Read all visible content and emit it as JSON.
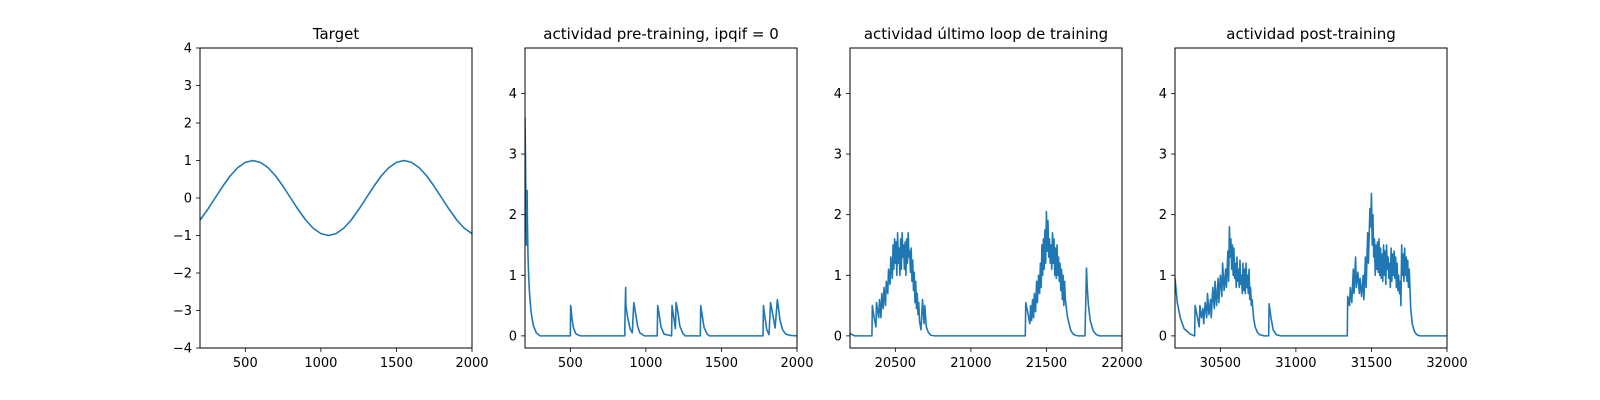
{
  "chart_data": [
    {
      "type": "line",
      "title": "Target",
      "xlabel": "",
      "ylabel": "",
      "xlim": [
        200,
        2000
      ],
      "ylim": [
        -4,
        4
      ],
      "xticks": [
        500,
        1000,
        1500,
        2000
      ],
      "yticks": [
        -4,
        -3,
        -2,
        -1,
        0,
        1,
        2,
        3,
        4
      ],
      "color": "#1f77b4",
      "grid": false,
      "series": [
        {
          "x": [
            200,
            250,
            300,
            350,
            400,
            450,
            500,
            550,
            600,
            650,
            700,
            750,
            800,
            850,
            900,
            950,
            1000,
            1050,
            1100,
            1150,
            1200,
            1250,
            1300,
            1350,
            1400,
            1450,
            1500,
            1550,
            1600,
            1650,
            1700,
            1750,
            1800,
            1850,
            1900,
            1950,
            2000
          ],
          "values": [
            -0.59,
            -0.31,
            0.0,
            0.31,
            0.59,
            0.81,
            0.95,
            1.0,
            0.95,
            0.81,
            0.59,
            0.31,
            0.0,
            -0.31,
            -0.59,
            -0.81,
            -0.95,
            -1.0,
            -0.95,
            -0.81,
            -0.59,
            -0.31,
            0.0,
            0.31,
            0.59,
            0.81,
            0.95,
            1.0,
            0.95,
            0.81,
            0.59,
            0.31,
            0.0,
            -0.31,
            -0.59,
            -0.81,
            -0.95
          ]
        }
      ]
    },
    {
      "type": "line",
      "title": "actividad pre-training, ipqif = 0",
      "xlabel": "",
      "ylabel": "",
      "xlim": [
        200,
        2000
      ],
      "ylim": [
        -0.2,
        4.75
      ],
      "xticks": [
        500,
        1000,
        1500,
        2000
      ],
      "yticks": [
        0,
        1,
        2,
        3,
        4
      ],
      "color": "#1f77b4",
      "grid": false,
      "series": [
        {
          "x": [
            200,
            203,
            206,
            210,
            212,
            214,
            216,
            220,
            225,
            230,
            240,
            255,
            275,
            300,
            500,
            502,
            505,
            510,
            520,
            535,
            555,
            570,
            860,
            862,
            866,
            868,
            872,
            880,
            895,
            910,
            920,
            930,
            945,
            960,
            990,
            1075,
            1078,
            1085,
            1100,
            1120,
            1170,
            1173,
            1180,
            1195,
            1200,
            1210,
            1225,
            1245,
            1260,
            1360,
            1363,
            1370,
            1385,
            1405,
            1420,
            1775,
            1778,
            1785,
            1800,
            1815,
            1825,
            1840,
            1855,
            1870,
            1878,
            1888,
            1905,
            1925,
            1950,
            2000
          ],
          "values": [
            3.6,
            3.0,
            2.2,
            1.5,
            2.3,
            2.4,
            1.9,
            1.3,
            0.95,
            0.7,
            0.4,
            0.17,
            0.05,
            0.0,
            0.0,
            0.5,
            0.45,
            0.3,
            0.14,
            0.04,
            0.01,
            0.0,
            0.0,
            0.35,
            0.8,
            0.5,
            0.42,
            0.3,
            0.12,
            0.05,
            0.55,
            0.4,
            0.16,
            0.05,
            0.0,
            0.0,
            0.5,
            0.4,
            0.15,
            0.03,
            0.0,
            0.5,
            0.38,
            0.12,
            0.55,
            0.42,
            0.16,
            0.04,
            0.0,
            0.0,
            0.5,
            0.38,
            0.14,
            0.03,
            0.0,
            0.0,
            0.5,
            0.36,
            0.1,
            0.02,
            0.55,
            0.35,
            0.13,
            0.6,
            0.45,
            0.25,
            0.1,
            0.03,
            0.01,
            0.0
          ]
        }
      ]
    },
    {
      "type": "line",
      "title": "actividad último loop de training",
      "xlabel": "",
      "ylabel": "",
      "xlim": [
        20200,
        22000
      ],
      "ylim": [
        -0.2,
        4.75
      ],
      "xticks": [
        20500,
        21000,
        21500,
        22000
      ],
      "yticks": [
        0,
        1,
        2,
        3,
        4
      ],
      "color": "#1f77b4",
      "grid": false,
      "series": [
        {
          "x": [
            20200,
            20215,
            20230,
            20345,
            20348,
            20360,
            20372,
            20375,
            20390,
            20395,
            20405,
            20410,
            20420,
            20425,
            20435,
            20440,
            20450,
            20455,
            20465,
            20470,
            20480,
            20485,
            20490,
            20495,
            20500,
            20505,
            20510,
            20515,
            20520,
            20525,
            20530,
            20535,
            20540,
            20545,
            20550,
            20555,
            20560,
            20565,
            20570,
            20575,
            20580,
            20585,
            20590,
            20595,
            20600,
            20605,
            20610,
            20615,
            20620,
            20625,
            20630,
            20635,
            20640,
            20645,
            20650,
            20655,
            20660,
            20670,
            20680,
            20690,
            20695,
            20705,
            20720,
            20735,
            20760,
            21360,
            21363,
            21375,
            21390,
            21395,
            21402,
            21408,
            21415,
            21420,
            21428,
            21435,
            21440,
            21448,
            21455,
            21460,
            21465,
            21470,
            21475,
            21480,
            21485,
            21490,
            21495,
            21500,
            21505,
            21510,
            21515,
            21520,
            21525,
            21530,
            21535,
            21540,
            21545,
            21550,
            21555,
            21560,
            21565,
            21570,
            21575,
            21580,
            21585,
            21590,
            21595,
            21600,
            21605,
            21610,
            21615,
            21620,
            21625,
            21630,
            21640,
            21650,
            21660,
            21668,
            21678,
            21690,
            21710,
            21730,
            21755,
            21765,
            21770,
            21778,
            21790,
            21810,
            21830,
            21850,
            22000
          ],
          "values": [
            0.04,
            0.02,
            0.0,
            0.0,
            0.5,
            0.3,
            0.15,
            0.55,
            0.3,
            0.6,
            0.3,
            0.7,
            0.45,
            0.8,
            0.5,
            0.9,
            0.7,
            1.1,
            0.85,
            1.3,
            0.95,
            1.5,
            1.1,
            1.6,
            1.2,
            1.55,
            1.0,
            1.7,
            1.2,
            1.45,
            1.0,
            1.6,
            1.1,
            1.7,
            1.3,
            1.5,
            1.1,
            1.55,
            1.0,
            1.6,
            1.2,
            1.7,
            1.3,
            1.4,
            1.05,
            1.45,
            0.9,
            1.25,
            0.75,
            1.05,
            0.55,
            0.9,
            0.45,
            0.7,
            0.35,
            0.55,
            0.25,
            0.1,
            0.6,
            0.2,
            0.5,
            0.15,
            0.05,
            0.01,
            0.0,
            0.0,
            0.55,
            0.4,
            0.2,
            0.5,
            0.25,
            0.6,
            0.3,
            0.7,
            0.4,
            0.9,
            0.55,
            1.0,
            0.7,
            1.2,
            0.8,
            1.5,
            1.0,
            1.6,
            1.1,
            1.75,
            1.2,
            2.05,
            1.4,
            1.9,
            1.3,
            1.6,
            1.2,
            1.5,
            1.1,
            1.7,
            1.2,
            1.6,
            1.0,
            1.45,
            0.95,
            1.5,
            1.0,
            1.3,
            0.9,
            1.2,
            0.75,
            1.1,
            0.6,
            1.0,
            0.5,
            0.9,
            0.6,
            0.5,
            0.3,
            0.2,
            0.1,
            0.06,
            0.03,
            0.01,
            0.0,
            0.0,
            0.0,
            1.12,
            0.8,
            0.5,
            0.25,
            0.08,
            0.02,
            0.0,
            0.0
          ]
        }
      ]
    },
    {
      "type": "line",
      "title": "actividad post-training",
      "xlabel": "",
      "ylabel": "",
      "xlim": [
        30200,
        32000
      ],
      "ylim": [
        -0.2,
        4.75
      ],
      "xticks": [
        30500,
        31000,
        31500,
        32000
      ],
      "yticks": [
        0,
        1,
        2,
        3,
        4
      ],
      "color": "#1f77b4",
      "grid": false,
      "series": [
        {
          "x": [
            30200,
            30215,
            30235,
            30260,
            30300,
            30330,
            30333,
            30345,
            30360,
            30365,
            30375,
            30385,
            30390,
            30400,
            30410,
            30415,
            30425,
            30435,
            30440,
            30450,
            30460,
            30465,
            30475,
            30485,
            30490,
            30500,
            30510,
            30515,
            30525,
            30535,
            30540,
            30550,
            30555,
            30560,
            30565,
            30570,
            30575,
            30580,
            30585,
            30590,
            30595,
            30600,
            30605,
            30610,
            30615,
            30620,
            30625,
            30630,
            30635,
            30640,
            30645,
            30650,
            30655,
            30660,
            30665,
            30670,
            30675,
            30680,
            30685,
            30690,
            30695,
            30700,
            30705,
            30710,
            30720,
            30730,
            30745,
            30760,
            30775,
            30790,
            30820,
            30823,
            30835,
            30850,
            30870,
            30900,
            31340,
            31343,
            31355,
            31360,
            31370,
            31380,
            31385,
            31395,
            31400,
            31410,
            31420,
            31425,
            31435,
            31445,
            31450,
            31460,
            31465,
            31475,
            31480,
            31490,
            31495,
            31500,
            31505,
            31510,
            31515,
            31520,
            31525,
            31530,
            31535,
            31540,
            31545,
            31550,
            31555,
            31560,
            31565,
            31570,
            31575,
            31580,
            31585,
            31590,
            31595,
            31600,
            31605,
            31610,
            31615,
            31620,
            31625,
            31630,
            31635,
            31640,
            31645,
            31650,
            31655,
            31660,
            31665,
            31670,
            31675,
            31680,
            31685,
            31690,
            31695,
            31700,
            31705,
            31710,
            31715,
            31720,
            31725,
            31730,
            31735,
            31740,
            31745,
            31750,
            31760,
            31770,
            31785,
            31800,
            31820,
            32000
          ],
          "values": [
            0.95,
            0.55,
            0.3,
            0.12,
            0.03,
            0.0,
            0.5,
            0.35,
            0.15,
            0.5,
            0.3,
            0.45,
            0.2,
            0.55,
            0.3,
            0.7,
            0.35,
            0.6,
            0.3,
            0.8,
            0.45,
            0.9,
            0.5,
            0.95,
            0.55,
            1.0,
            0.65,
            1.2,
            0.75,
            1.1,
            0.8,
            1.4,
            0.9,
            1.8,
            1.3,
            1.6,
            1.1,
            1.5,
            1.0,
            1.45,
            0.95,
            1.2,
            0.8,
            1.3,
            0.9,
            1.1,
            0.8,
            1.25,
            0.85,
            1.0,
            0.7,
            1.2,
            0.75,
            1.1,
            0.7,
            1.2,
            0.8,
            1.0,
            0.7,
            1.1,
            0.6,
            0.8,
            0.5,
            0.6,
            0.3,
            0.15,
            0.06,
            0.02,
            0.01,
            0.0,
            0.0,
            0.53,
            0.3,
            0.1,
            0.02,
            0.0,
            0.0,
            0.65,
            0.5,
            0.8,
            0.55,
            1.1,
            0.7,
            1.3,
            0.8,
            1.05,
            0.7,
            0.95,
            0.65,
            1.0,
            0.6,
            1.3,
            0.8,
            1.7,
            1.2,
            2.1,
            1.8,
            2.35,
            1.5,
            2.0,
            1.3,
            1.6,
            1.0,
            1.5,
            1.1,
            1.55,
            1.05,
            1.6,
            1.0,
            1.45,
            0.95,
            1.35,
            0.9,
            1.5,
            1.0,
            1.4,
            0.85,
            1.5,
            1.1,
            1.3,
            0.95,
            1.2,
            0.8,
            1.45,
            0.9,
            1.35,
            1.0,
            1.4,
            0.95,
            1.3,
            0.8,
            1.2,
            0.75,
            1.0,
            0.7,
            0.9,
            0.5,
            1.5,
            1.0,
            1.35,
            0.9,
            1.45,
            1.0,
            1.3,
            0.9,
            1.25,
            0.8,
            1.1,
            0.45,
            0.2,
            0.07,
            0.02,
            0.0,
            0.0
          ]
        }
      ]
    }
  ]
}
